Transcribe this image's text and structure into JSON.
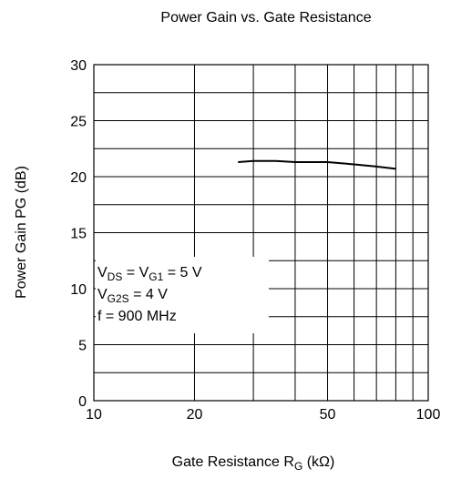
{
  "chart_data": {
    "type": "line",
    "title": "Power Gain vs. Gate Resistance",
    "x_label": [
      "Gate Resistance  R",
      "G",
      " (kΩ)"
    ],
    "y_label": "Power Gain  PG  (dB)",
    "log_x": true,
    "grid": true,
    "xlim": [
      10,
      100
    ],
    "xticks": [
      10,
      20,
      50,
      100
    ],
    "x_minor_ticks": [
      30,
      40,
      60,
      70,
      80,
      90
    ],
    "ylim": [
      0,
      30
    ],
    "yticks": [
      0,
      5,
      10,
      15,
      20,
      25,
      30
    ],
    "y_minor_ticks": [
      2.5,
      7.5,
      12.5,
      17.5,
      22.5,
      27.5
    ],
    "annotation": [
      [
        "V",
        "DS",
        " = V",
        "G1",
        " = 5 V"
      ],
      [
        "V",
        "G2S",
        " = 4 V"
      ],
      [
        "f = 900 MHz"
      ]
    ],
    "series": [
      {
        "color": "#000000",
        "x": [
          27,
          30,
          35,
          40,
          50,
          60,
          70,
          80
        ],
        "values": [
          21.3,
          21.4,
          21.4,
          21.3,
          21.3,
          21.1,
          20.9,
          20.7
        ]
      }
    ]
  }
}
